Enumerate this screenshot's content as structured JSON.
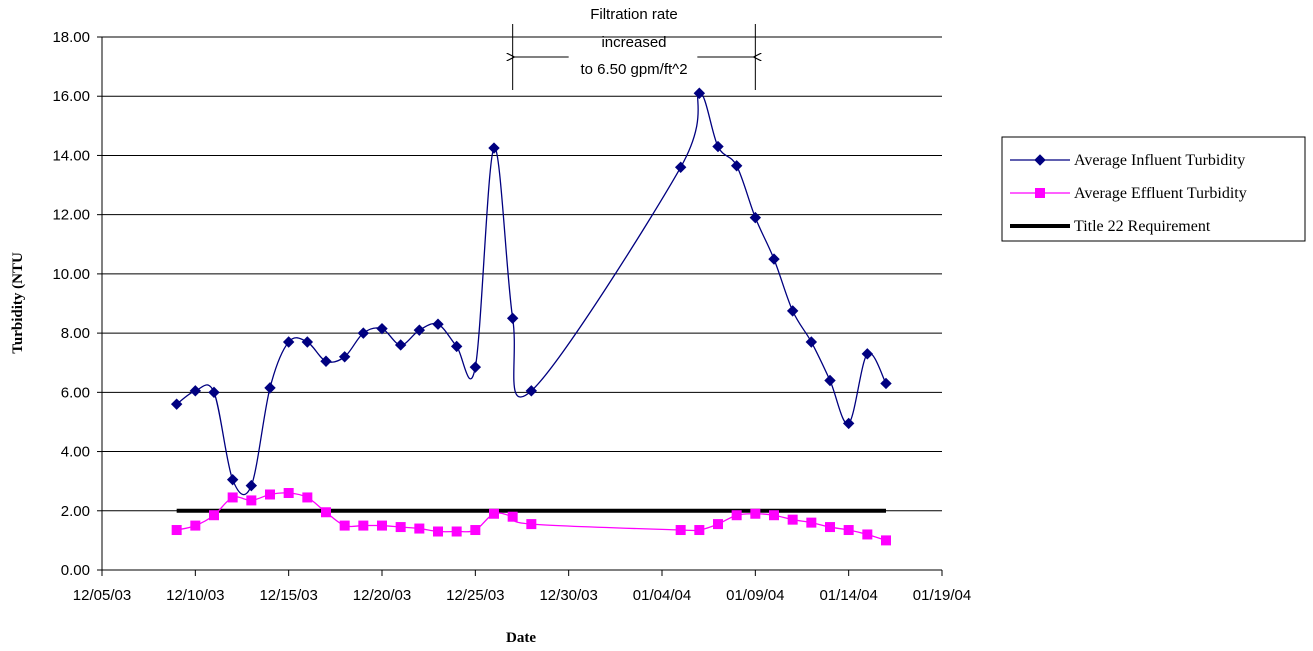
{
  "chart_data": {
    "type": "line",
    "xlabel": "Date",
    "ylabel": "Turbidity (NTU",
    "x_axis": {
      "type": "date",
      "min": "2003-12-05",
      "max": "2004-01-19",
      "tick_labels": [
        "12/05/03",
        "12/10/03",
        "12/15/03",
        "12/20/03",
        "12/25/03",
        "12/30/03",
        "01/04/04",
        "01/09/04",
        "01/14/04",
        "01/19/04"
      ]
    },
    "y_axis": {
      "ylim": [
        0,
        18
      ],
      "tick_labels": [
        "0.00",
        "2.00",
        "4.00",
        "6.00",
        "8.00",
        "10.00",
        "12.00",
        "14.00",
        "16.00",
        "18.00"
      ]
    },
    "grid": "horizontal",
    "legend_position": "right",
    "annotation": {
      "lines": [
        "Filtration rate",
        "increased",
        "to 6.50 gpm/ft^2"
      ],
      "from": "2003-12-27",
      "to": "2004-01-09"
    },
    "series": [
      {
        "name": "Average Influent Turbidity",
        "color": "#000080",
        "marker": "diamond",
        "smooth": true,
        "points": [
          [
            "2003-12-09",
            5.6
          ],
          [
            "2003-12-10",
            6.05
          ],
          [
            "2003-12-11",
            6.0
          ],
          [
            "2003-12-12",
            3.05
          ],
          [
            "2003-12-13",
            2.85
          ],
          [
            "2003-12-14",
            6.15
          ],
          [
            "2003-12-15",
            7.7
          ],
          [
            "2003-12-16",
            7.7
          ],
          [
            "2003-12-17",
            7.05
          ],
          [
            "2003-12-18",
            7.2
          ],
          [
            "2003-12-19",
            8.0
          ],
          [
            "2003-12-20",
            8.15
          ],
          [
            "2003-12-21",
            7.6
          ],
          [
            "2003-12-22",
            8.1
          ],
          [
            "2003-12-23",
            8.3
          ],
          [
            "2003-12-24",
            7.55
          ],
          [
            "2003-12-25",
            6.85
          ],
          [
            "2003-12-26",
            14.25
          ],
          [
            "2003-12-27",
            8.5
          ],
          [
            "2003-12-28",
            6.05
          ],
          [
            "2004-01-05",
            13.6
          ],
          [
            "2004-01-06",
            16.1
          ],
          [
            "2004-01-07",
            14.3
          ],
          [
            "2004-01-08",
            13.65
          ],
          [
            "2004-01-09",
            11.9
          ],
          [
            "2004-01-10",
            10.5
          ],
          [
            "2004-01-11",
            8.75
          ],
          [
            "2004-01-12",
            7.7
          ],
          [
            "2004-01-13",
            6.4
          ],
          [
            "2004-01-14",
            4.95
          ],
          [
            "2004-01-15",
            7.3
          ],
          [
            "2004-01-16",
            6.3
          ]
        ]
      },
      {
        "name": "Average Effluent Turbidity",
        "color": "#FF00FF",
        "marker": "square",
        "smooth": true,
        "points": [
          [
            "2003-12-09",
            1.35
          ],
          [
            "2003-12-10",
            1.5
          ],
          [
            "2003-12-11",
            1.85
          ],
          [
            "2003-12-12",
            2.45
          ],
          [
            "2003-12-13",
            2.35
          ],
          [
            "2003-12-14",
            2.55
          ],
          [
            "2003-12-15",
            2.6
          ],
          [
            "2003-12-16",
            2.45
          ],
          [
            "2003-12-17",
            1.95
          ],
          [
            "2003-12-18",
            1.5
          ],
          [
            "2003-12-19",
            1.5
          ],
          [
            "2003-12-20",
            1.5
          ],
          [
            "2003-12-21",
            1.45
          ],
          [
            "2003-12-22",
            1.4
          ],
          [
            "2003-12-23",
            1.3
          ],
          [
            "2003-12-24",
            1.3
          ],
          [
            "2003-12-25",
            1.35
          ],
          [
            "2003-12-26",
            1.9
          ],
          [
            "2003-12-27",
            1.8
          ],
          [
            "2003-12-28",
            1.55
          ],
          [
            "2004-01-05",
            1.35
          ],
          [
            "2004-01-06",
            1.35
          ],
          [
            "2004-01-07",
            1.55
          ],
          [
            "2004-01-08",
            1.85
          ],
          [
            "2004-01-09",
            1.9
          ],
          [
            "2004-01-10",
            1.85
          ],
          [
            "2004-01-11",
            1.7
          ],
          [
            "2004-01-12",
            1.6
          ],
          [
            "2004-01-13",
            1.45
          ],
          [
            "2004-01-14",
            1.35
          ],
          [
            "2004-01-15",
            1.2
          ],
          [
            "2004-01-16",
            1.0
          ]
        ]
      },
      {
        "name": "Title 22 Requirement",
        "color": "#000000",
        "marker": "none",
        "smooth": false,
        "points": [
          [
            "2003-12-09",
            2.0
          ],
          [
            "2004-01-16",
            2.0
          ]
        ]
      }
    ]
  }
}
